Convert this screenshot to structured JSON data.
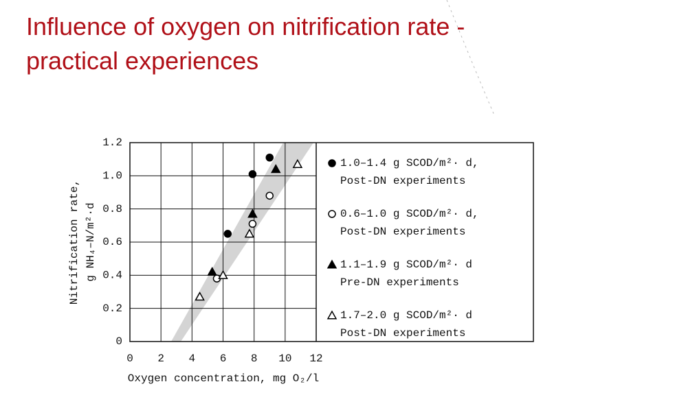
{
  "chart_data": {
    "type": "scatter",
    "title": "Influence of oxygen on nitrification rate - practical experiences",
    "xlabel": "Oxygen concentration, mg O₂/l",
    "ylabel": [
      "Nitrification rate,",
      "g NH₄–N/m²·d"
    ],
    "xlim": [
      0,
      12
    ],
    "ylim": [
      0,
      1.2
    ],
    "xticks": [
      0,
      2,
      4,
      6,
      8,
      10,
      12
    ],
    "yticks": [
      0,
      0.2,
      0.4,
      0.6,
      0.8,
      {
        "value": 1,
        "label": "1.0"
      },
      1.2
    ],
    "grid": true,
    "legend": "right",
    "series": [
      {
        "name": "1.0–1.4 g SCOD/m²· d,\nPost-DN experiments",
        "marker": "circle",
        "color": "#000000",
        "x": [
          6.3,
          7.9,
          9.0
        ],
        "values": [
          0.65,
          1.01,
          1.11
        ]
      },
      {
        "name": "0.6–1.0 g SCOD/m²· d,\nPost-DN experiments",
        "marker": "circle-open",
        "color": "#000000",
        "x": [
          5.6,
          7.9,
          9.0
        ],
        "values": [
          0.38,
          0.71,
          0.88
        ]
      },
      {
        "name": "1.1–1.9 g SCOD/m²· d\nPre-DN experiments",
        "marker": "triangle",
        "color": "#000000",
        "x": [
          5.3,
          7.9,
          9.4
        ],
        "values": [
          0.42,
          0.77,
          1.04
        ]
      },
      {
        "name": "1.7–2.0 g SCOD/m²· d\nPost-DN experiments",
        "marker": "triangle-open",
        "color": "#000000",
        "x": [
          4.5,
          6.0,
          7.7,
          10.8
        ],
        "values": [
          0.27,
          0.4,
          0.65,
          1.07
        ]
      }
    ]
  }
}
